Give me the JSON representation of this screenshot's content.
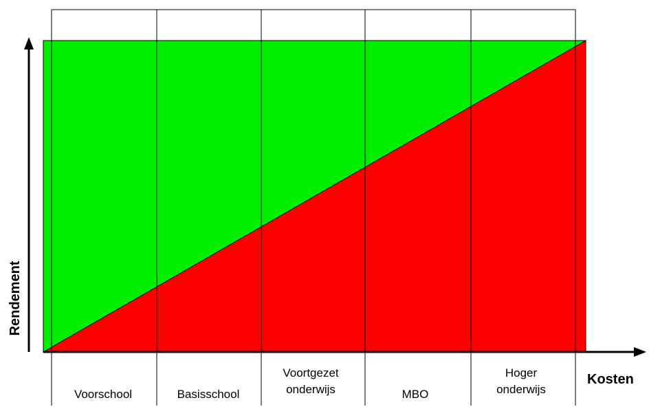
{
  "axes": {
    "x_label": "Kosten",
    "y_label": "Rendement"
  },
  "stages": [
    {
      "lines": [
        "Voorschool"
      ]
    },
    {
      "lines": [
        "Basisschool"
      ]
    },
    {
      "lines": [
        "Voortgezet",
        "onderwijs"
      ]
    },
    {
      "lines": [
        "MBO"
      ]
    },
    {
      "lines": [
        "Hoger",
        "onderwijs"
      ]
    }
  ],
  "colors": {
    "above_line": "#00ee00",
    "below_line": "#ff0000",
    "lines": "#000000"
  }
}
